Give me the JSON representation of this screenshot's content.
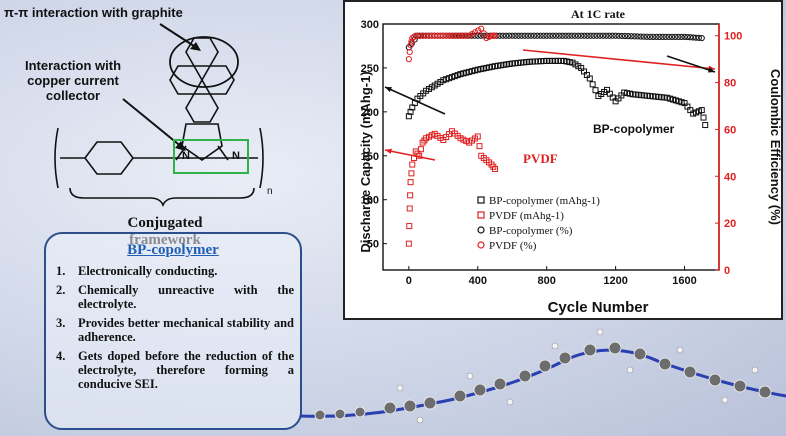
{
  "molecule": {
    "pi_label": "π-π interaction with graphite",
    "copper_label_1": "Interaction with",
    "copper_label_2": "copper current",
    "copper_label_3": "collector",
    "framework_label": "Conjugated framework",
    "atom_n": "N",
    "subscript_n": "n"
  },
  "info_box": {
    "title": "BP-copolymer",
    "items": [
      {
        "num": "1.",
        "text": "Electronically conducting."
      },
      {
        "num": "2.",
        "text": "Chemically unreactive with the electrolyte."
      },
      {
        "num": "3.",
        "text": "Provides better mechanical stability and adherence."
      },
      {
        "num": "4.",
        "text": "Gets doped before the reduction of the electrolyte, therefore forming a conducive SEI."
      }
    ]
  },
  "chart_data": {
    "type": "scatter",
    "title": "At 1C rate",
    "xlabel": "Cycle Number",
    "ylabel_left": "Discharge Capacity (mAhg-1)",
    "ylabel_right": "Coulombic Efficiency (%)",
    "xlim": [
      -150,
      1800
    ],
    "ylim_left": [
      20,
      300
    ],
    "ylim_right": [
      0,
      105
    ],
    "x_ticks": [
      0,
      400,
      800,
      1200,
      1600
    ],
    "y_ticks_left": [
      50,
      100,
      150,
      200,
      250,
      300
    ],
    "y_ticks_right": [
      0,
      20,
      40,
      60,
      80,
      100
    ],
    "annotations": [
      "BP-copolymer",
      "PVDF"
    ],
    "legend": [
      {
        "label": "BP-copolymer (mAhg-1)",
        "marker": "square",
        "color": "#111111"
      },
      {
        "label": "PVDF (mAhg-1)",
        "marker": "square",
        "color": "#e02020"
      },
      {
        "label": "BP-copolymer (%)",
        "marker": "circle",
        "color": "#111111"
      },
      {
        "label": "PVDF (%)",
        "marker": "circle",
        "color": "#e02020"
      }
    ],
    "series": [
      {
        "name": "BP-copolymer (mAhg-1)",
        "axis": "left",
        "color": "#111111",
        "marker": "square",
        "x": [
          0,
          20,
          50,
          100,
          150,
          200,
          300,
          400,
          500,
          600,
          700,
          800,
          900,
          950,
          1000,
          1050,
          1100,
          1150,
          1200,
          1250,
          1300,
          1400,
          1500,
          1600,
          1650,
          1700,
          1720
        ],
        "y": [
          195,
          205,
          215,
          224,
          230,
          236,
          243,
          248,
          252,
          255,
          257,
          258,
          258,
          256,
          250,
          238,
          218,
          225,
          212,
          222,
          220,
          218,
          216,
          210,
          198,
          202,
          185
        ]
      },
      {
        "name": "PVDF (mAhg-1)",
        "axis": "left",
        "color": "#e02020",
        "marker": "square",
        "x": [
          0,
          5,
          10,
          20,
          40,
          60,
          80,
          100,
          150,
          200,
          250,
          300,
          350,
          400,
          420,
          450,
          480,
          500
        ],
        "y": [
          50,
          90,
          120,
          140,
          155,
          150,
          165,
          170,
          175,
          168,
          178,
          170,
          165,
          172,
          150,
          145,
          140,
          135
        ]
      },
      {
        "name": "BP-copolymer (%)",
        "axis": "right",
        "color": "#111111",
        "marker": "circle",
        "x": [
          0,
          50,
          100,
          200,
          400,
          600,
          800,
          1000,
          1200,
          1400,
          1600,
          1700
        ],
        "y": [
          95,
          100,
          100,
          100,
          100,
          100,
          100,
          100,
          100,
          99.5,
          99.5,
          99
        ]
      },
      {
        "name": "PVDF (%)",
        "axis": "right",
        "color": "#e02020",
        "marker": "circle",
        "x": [
          0,
          10,
          20,
          40,
          80,
          150,
          250,
          350,
          420,
          450,
          480,
          500
        ],
        "y": [
          90,
          96,
          99,
          100,
          100,
          100,
          100,
          100,
          103,
          99,
          100,
          100
        ]
      }
    ]
  }
}
